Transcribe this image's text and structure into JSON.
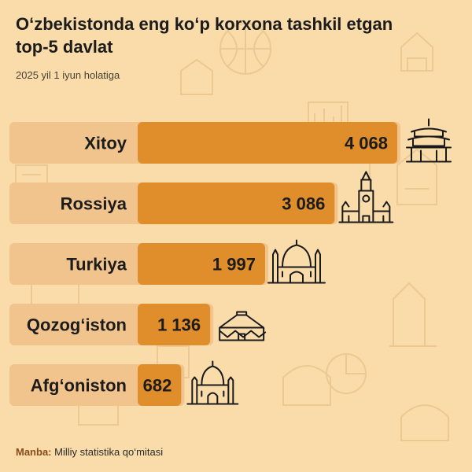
{
  "title": "O‘zbekistonda eng ko‘p korxona tashkil etgan top-5 davlat",
  "subtitle": "2025 yil 1 iyun holatiga",
  "source": {
    "label": "Manba:",
    "text": "Milliy statistika qo‘mitasi"
  },
  "colors": {
    "background": "#f9dcaa",
    "bar": "#e08d2b",
    "label_band": "#f2c48d",
    "text": "#1c1c1c"
  },
  "chart_data": {
    "type": "bar",
    "orientation": "horizontal",
    "categories": [
      "Xitoy",
      "Rossiya",
      "Turkiya",
      "Qozog‘iston",
      "Afg‘oniston"
    ],
    "values": [
      4068,
      3086,
      1997,
      1136,
      682
    ],
    "value_labels": [
      "4 068",
      "3 086",
      "1 997",
      "1 136",
      "682"
    ],
    "icons": [
      "pagoda-icon",
      "kremlin-tower-icon",
      "mosque-icon",
      "yurt-icon",
      "mausoleum-icon"
    ],
    "grid": false,
    "legend": "none"
  }
}
